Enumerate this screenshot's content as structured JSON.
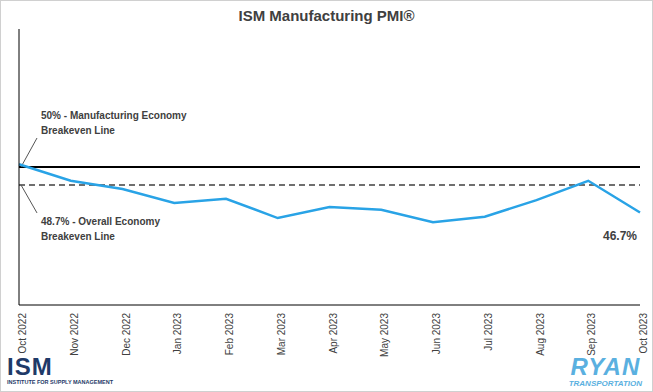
{
  "chart_data": {
    "type": "line",
    "title": "ISM Manufacturing PMI®",
    "categories": [
      "Oct 2022",
      "Nov 2022",
      "Dec 2022",
      "Jan 2023",
      "Feb 2023",
      "Mar 2023",
      "Apr 2023",
      "May 2023",
      "Jun 2023",
      "Jul 2023",
      "Aug 2023",
      "Sep 2023",
      "Oct 2023"
    ],
    "values": [
      50.2,
      49.0,
      48.4,
      47.4,
      47.7,
      46.3,
      47.1,
      46.9,
      46.0,
      46.4,
      47.6,
      49.0,
      46.7
    ],
    "color": "#29a3e6",
    "ylim": [
      40,
      60
    ],
    "tick_labels": "x",
    "grid": false,
    "reference_lines": [
      {
        "y": 50,
        "label": [
          "50% - Manufacturing Economy",
          "Breakeven Line"
        ],
        "line_style": "solid",
        "color": "#000000"
      },
      {
        "y": 48.7,
        "label": [
          "48.7% - Overall Economy",
          "Breakeven Line"
        ],
        "line_style": "dashed",
        "color": "#404040"
      }
    ],
    "point_labels": [
      {
        "x": "Oct 2023",
        "y": 46.7,
        "label": "46.7%"
      }
    ],
    "logos": [
      {
        "name": "ISM",
        "subtitle": "INSTITUTE FOR SUPPLY MANAGEMENT"
      },
      {
        "name": "RYAN",
        "subtitle": "TRANSPORTATION"
      }
    ]
  }
}
